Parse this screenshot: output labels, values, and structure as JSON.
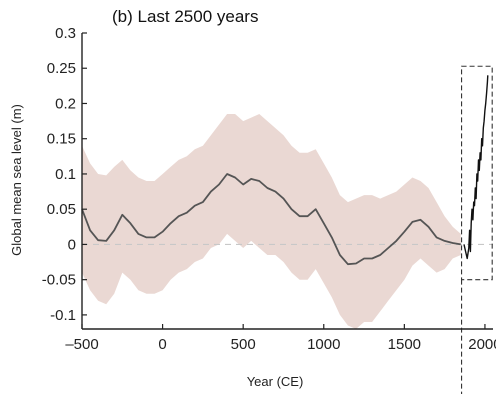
{
  "chart_data": {
    "type": "line",
    "title": "(b)  Last 2500 years",
    "xlabel": "Year (CE)",
    "ylabel": "Global mean sea level (m)",
    "xlim": [
      -500,
      2050
    ],
    "ylim": [
      -0.12,
      0.3
    ],
    "x_ticks": [
      -500,
      0,
      500,
      1000,
      1500,
      2000
    ],
    "y_ticks": [
      -0.1,
      -0.05,
      0,
      0.05,
      0.1,
      0.15,
      0.2,
      0.25,
      0.3
    ],
    "y_tick_labels": [
      "-0.1",
      "-0.05",
      "0",
      "0.05",
      "0.1",
      "0.15",
      "0.2",
      "0.25",
      "0.3"
    ],
    "grid": false,
    "zero_line": true,
    "series": [
      {
        "color": "#555555",
        "band_color": "#ead8d3",
        "x": [
          -500,
          -450,
          -400,
          -350,
          -300,
          -250,
          -200,
          -150,
          -100,
          -50,
          0,
          50,
          100,
          150,
          200,
          250,
          300,
          350,
          400,
          450,
          500,
          550,
          600,
          650,
          700,
          750,
          800,
          850,
          900,
          950,
          1000,
          1050,
          1100,
          1150,
          1200,
          1250,
          1300,
          1350,
          1400,
          1450,
          1500,
          1550,
          1600,
          1650,
          1700,
          1750,
          1800,
          1850
        ],
        "y": [
          0.05,
          0.02,
          0.006,
          0.005,
          0.02,
          0.042,
          0.03,
          0.015,
          0.01,
          0.01,
          0.018,
          0.03,
          0.04,
          0.045,
          0.055,
          0.06,
          0.075,
          0.085,
          0.1,
          0.095,
          0.085,
          0.093,
          0.09,
          0.08,
          0.075,
          0.065,
          0.05,
          0.04,
          0.04,
          0.05,
          0.03,
          0.01,
          -0.015,
          -0.028,
          -0.027,
          -0.02,
          -0.02,
          -0.015,
          -0.005,
          0.005,
          0.018,
          0.032,
          0.035,
          0.025,
          0.01,
          0.005,
          0.002,
          0.0
        ],
        "upper": [
          0.14,
          0.115,
          0.1,
          0.098,
          0.11,
          0.12,
          0.105,
          0.095,
          0.09,
          0.09,
          0.1,
          0.11,
          0.12,
          0.125,
          0.135,
          0.14,
          0.155,
          0.17,
          0.185,
          0.185,
          0.175,
          0.18,
          0.185,
          0.175,
          0.165,
          0.155,
          0.14,
          0.13,
          0.13,
          0.135,
          0.115,
          0.095,
          0.07,
          0.06,
          0.065,
          0.07,
          0.07,
          0.065,
          0.07,
          0.075,
          0.085,
          0.095,
          0.09,
          0.08,
          0.06,
          0.04,
          0.025,
          0.015
        ],
        "lower": [
          -0.04,
          -0.065,
          -0.08,
          -0.085,
          -0.07,
          -0.04,
          -0.05,
          -0.065,
          -0.07,
          -0.07,
          -0.065,
          -0.05,
          -0.04,
          -0.035,
          -0.025,
          -0.02,
          -0.005,
          0.0,
          0.015,
          0.005,
          -0.005,
          0.005,
          -0.005,
          -0.015,
          -0.015,
          -0.025,
          -0.04,
          -0.05,
          -0.05,
          -0.035,
          -0.055,
          -0.075,
          -0.1,
          -0.115,
          -0.12,
          -0.11,
          -0.11,
          -0.095,
          -0.08,
          -0.065,
          -0.05,
          -0.03,
          -0.02,
          -0.03,
          -0.04,
          -0.035,
          -0.02,
          -0.015
        ]
      },
      {
        "color": "#111111",
        "x": [
          1870,
          1880,
          1890,
          1900,
          1905,
          1910,
          1915,
          1920,
          1925,
          1930,
          1935,
          1940,
          1945,
          1950,
          1955,
          1960,
          1965,
          1970,
          1975,
          1980,
          1985,
          1990,
          1995,
          2000,
          2005,
          2010,
          2015,
          2018
        ],
        "y": [
          0.0,
          -0.01,
          -0.02,
          -0.005,
          0.02,
          -0.01,
          0.03,
          0.05,
          0.035,
          0.06,
          0.055,
          0.08,
          0.065,
          0.1,
          0.09,
          0.12,
          0.105,
          0.13,
          0.12,
          0.15,
          0.14,
          0.165,
          0.175,
          0.19,
          0.2,
          0.215,
          0.23,
          0.24
        ]
      }
    ],
    "annotations": [
      {
        "type": "dashed-box",
        "x_range": [
          1855,
          2045
        ],
        "y_range": [
          -0.05,
          0.25
        ]
      }
    ]
  }
}
